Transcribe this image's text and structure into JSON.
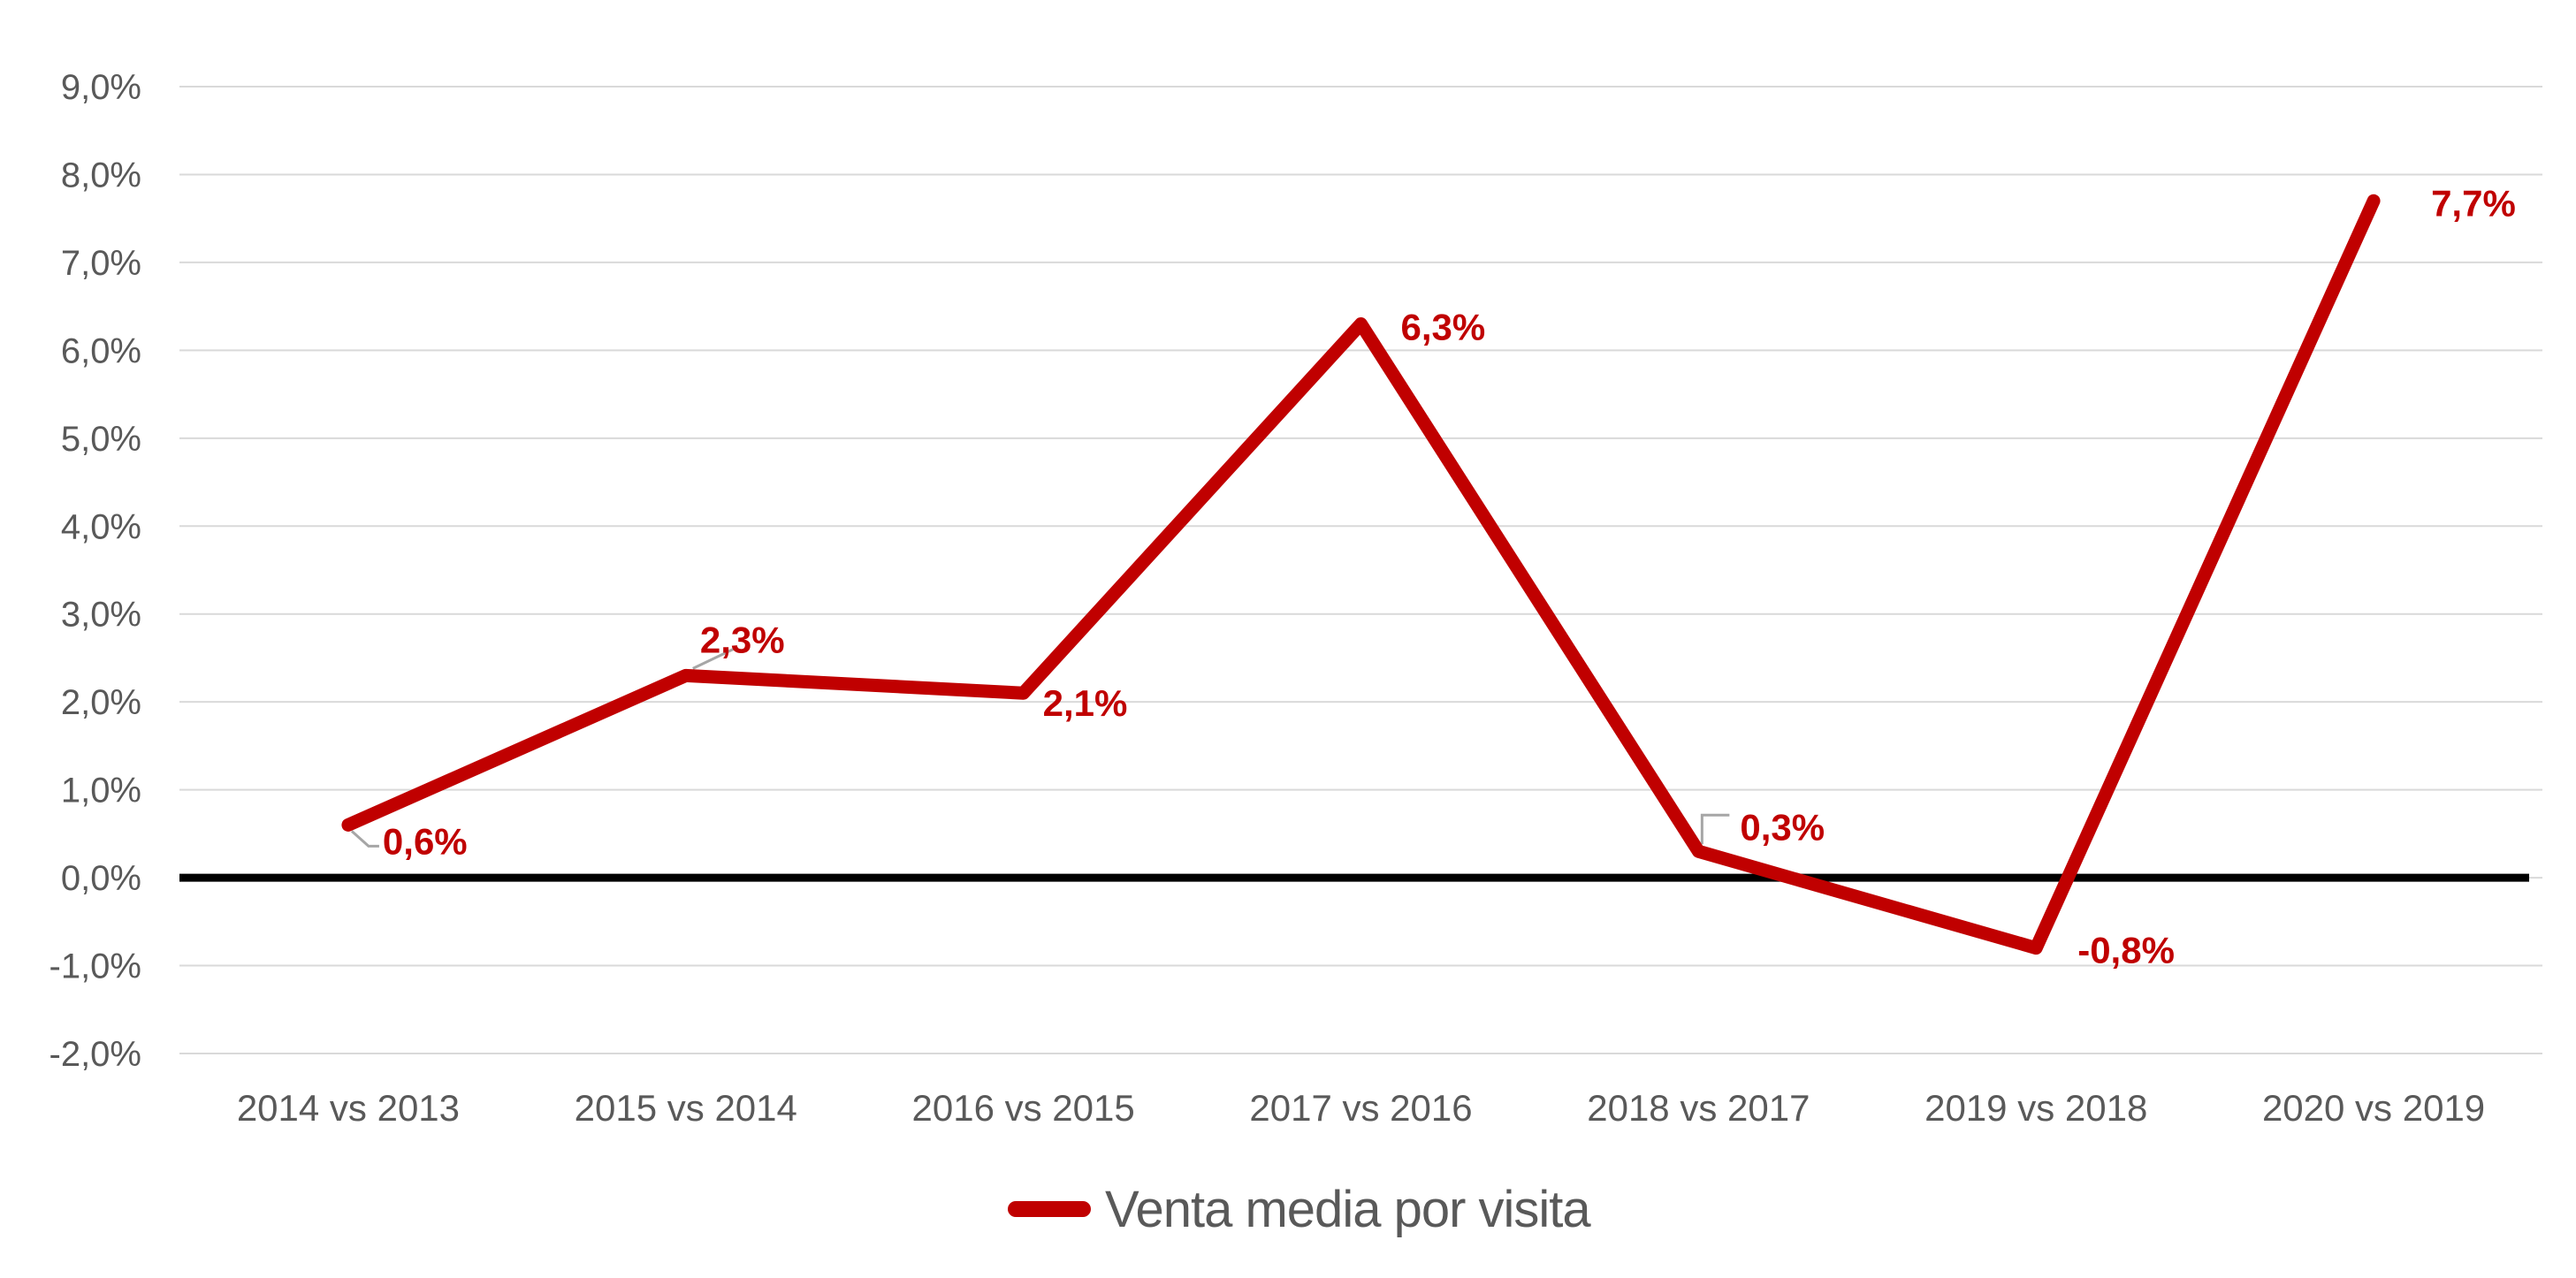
{
  "chart_data": {
    "type": "line",
    "title": "",
    "categories": [
      "2014 vs 2013",
      "2015 vs 2014",
      "2016 vs 2015",
      "2017 vs 2016",
      "2018 vs 2017",
      "2019 vs 2018",
      "2020 vs 2019"
    ],
    "series": [
      {
        "name": "Venta media por visita",
        "values": [
          0.6,
          2.3,
          2.1,
          6.3,
          0.3,
          -0.8,
          7.7
        ],
        "labels": [
          "0,6%",
          "2,3%",
          "2,1%",
          "6,3%",
          "0,3%",
          "-0,8%",
          "7,7%"
        ],
        "color": "#C00000"
      }
    ],
    "xlabel": "",
    "ylabel": "",
    "ylim": [
      -2.0,
      9.0
    ],
    "y_tick_step": 1.0,
    "y_ticks": [
      "9,0%",
      "8,0%",
      "7,0%",
      "6,0%",
      "5,0%",
      "4,0%",
      "3,0%",
      "2,0%",
      "1,0%",
      "0,0%",
      "-1,0%",
      "-2,0%"
    ],
    "grid": "horizontal",
    "zero_axis": true,
    "legend": {
      "position": "bottom-center",
      "label": "Venta media por visita",
      "swatch_color": "#C00000"
    },
    "colors": {
      "series": "#C00000",
      "data_label": "#C00000",
      "gridline": "#D9D9D9",
      "zero_line": "#000000",
      "axis_text": "#595959",
      "leader_line": "#A6A6A6",
      "background": "#FFFFFF"
    }
  }
}
